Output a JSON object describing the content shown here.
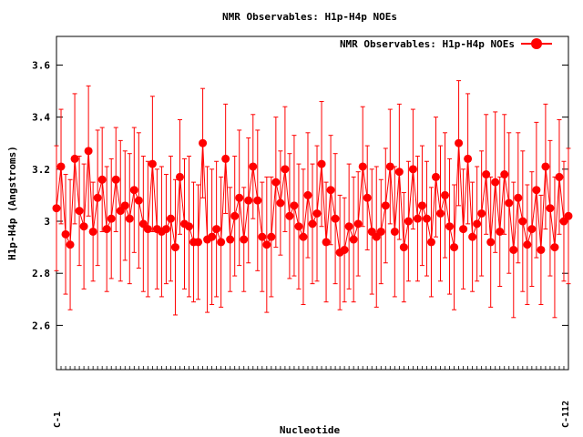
{
  "chart_data": {
    "type": "line",
    "title": "NMR Observables: H1p-H4p NOEs",
    "xlabel": "Nucleotide",
    "ylabel": "H1p-H4p (Angstroms)",
    "ylim": [
      2.43,
      3.71
    ],
    "yticks": [
      "2.6",
      "2.8",
      "3",
      "3.2",
      "3.4",
      "3.6"
    ],
    "xtick_first": "C-1",
    "xtick_last": "C-112",
    "grid": false,
    "legend": {
      "position": "top-right",
      "label": "NMR Observables: H1p-H4p NOEs"
    },
    "series": [
      {
        "name": "NMR Observables: H1p-H4p NOEs",
        "color": "#ff0000",
        "values": [
          3.05,
          3.21,
          2.95,
          2.91,
          3.24,
          3.04,
          2.98,
          3.27,
          2.96,
          3.09,
          3.16,
          2.97,
          3.01,
          3.16,
          3.04,
          3.06,
          3.01,
          3.12,
          3.08,
          2.99,
          2.97,
          3.22,
          2.97,
          2.96,
          2.97,
          3.01,
          2.9,
          3.17,
          2.99,
          2.98,
          2.92,
          2.92,
          3.3,
          2.93,
          2.94,
          2.97,
          2.92,
          3.24,
          2.93,
          3.02,
          3.09,
          2.93,
          3.08,
          3.21,
          3.08,
          2.94,
          2.91,
          2.94,
          3.15,
          3.07,
          3.2,
          3.02,
          3.06,
          2.98,
          2.94,
          3.1,
          2.99,
          3.03,
          3.22,
          2.92,
          3.12,
          3.01,
          2.88,
          2.89,
          2.98,
          2.93,
          2.99,
          3.21,
          3.09,
          2.96,
          2.94,
          2.96,
          3.06,
          3.21,
          2.96,
          3.19,
          2.9,
          3.0,
          3.2,
          3.01,
          3.06,
          3.01,
          2.92,
          3.17,
          3.03,
          3.1,
          2.98,
          2.9,
          3.3,
          2.97,
          3.24,
          2.94,
          2.99,
          3.03,
          3.18,
          2.92,
          3.15,
          2.96,
          3.18,
          3.07,
          2.89,
          3.09,
          3.0,
          2.91,
          2.97,
          3.12,
          2.89,
          3.21,
          3.05,
          2.9,
          3.17,
          3.0,
          3.02
        ],
        "err": [
          0.24,
          0.22,
          0.23,
          0.25,
          0.25,
          0.21,
          0.24,
          0.25,
          0.19,
          0.26,
          0.2,
          0.24,
          0.23,
          0.2,
          0.27,
          0.21,
          0.25,
          0.24,
          0.26,
          0.26,
          0.26,
          0.26,
          0.23,
          0.25,
          0.21,
          0.24,
          0.26,
          0.22,
          0.25,
          0.27,
          0.23,
          0.22,
          0.21,
          0.28,
          0.26,
          0.26,
          0.25,
          0.21,
          0.2,
          0.23,
          0.26,
          0.2,
          0.24,
          0.2,
          0.27,
          0.21,
          0.26,
          0.23,
          0.25,
          0.2,
          0.24,
          0.24,
          0.27,
          0.24,
          0.26,
          0.24,
          0.23,
          0.26,
          0.24,
          0.23,
          0.21,
          0.25,
          0.22,
          0.2,
          0.24,
          0.24,
          0.2,
          0.23,
          0.2,
          0.24,
          0.27,
          0.2,
          0.22,
          0.22,
          0.25,
          0.26,
          0.21,
          0.23,
          0.23,
          0.24,
          0.23,
          0.22,
          0.21,
          0.23,
          0.26,
          0.24,
          0.26,
          0.24,
          0.24,
          0.23,
          0.25,
          0.21,
          0.22,
          0.24,
          0.23,
          0.25,
          0.27,
          0.21,
          0.23,
          0.27,
          0.26,
          0.25,
          0.27,
          0.23,
          0.22,
          0.26,
          0.21,
          0.24,
          0.26,
          0.27,
          0.22,
          0.23,
          0.26
        ]
      }
    ]
  }
}
